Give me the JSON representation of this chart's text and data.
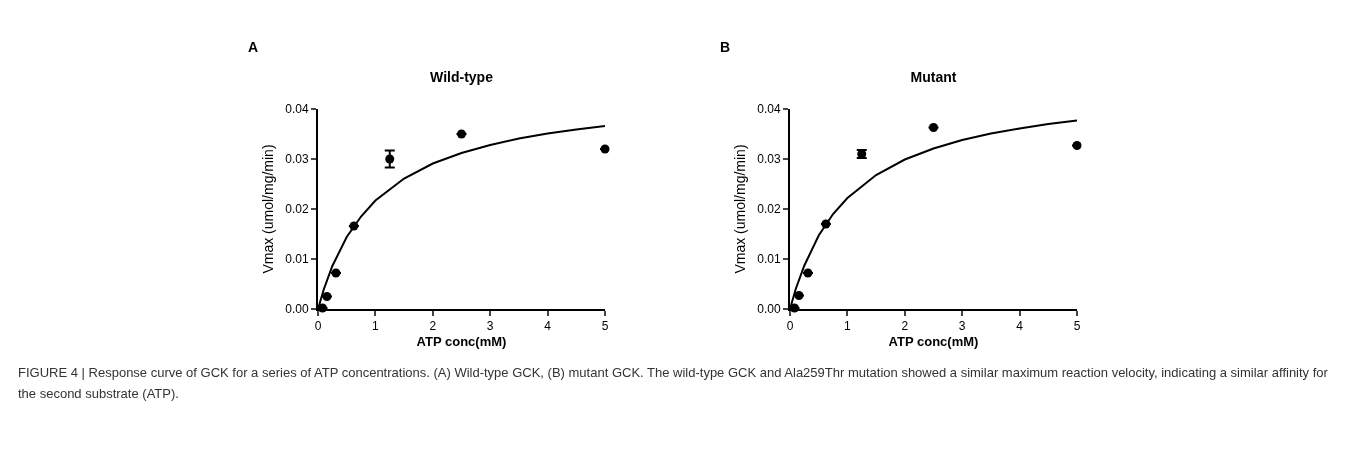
{
  "chart_data": [
    {
      "type": "scatter",
      "title": "Wild-type",
      "xlabel": "ATP conc(mM)",
      "ylabel": "Vmax (umol/mg/min)",
      "annotations": [
        "A",
        "FIGURE 4 | Response curve of GCK for a series of ATP concentrations. (A) Wild-type GCK, (B) mutant GCK. The wild-type GCK and Ala259Thr mutation showed a similar maximum reaction velocity, indicating a similar affinity for the second substrate (ATP)."
      ],
      "xlim": [
        0,
        5
      ],
      "xticks": [
        0,
        1,
        2,
        3,
        4,
        5
      ],
      "ylim": [
        0,
        0.04
      ],
      "yticks": [
        {
          "value": 0,
          "label": "0.00"
        },
        {
          "value": 0.01,
          "label": "0.01"
        },
        {
          "value": 0.02,
          "label": "0.02"
        },
        {
          "value": 0.03,
          "label": "0.03"
        },
        {
          "value": 0.04,
          "label": "0.04"
        }
      ],
      "series": [
        {
          "marker": "circle",
          "color": "#000000",
          "x": [
            0.078,
            0.156,
            0.3125,
            0.625,
            1.25,
            2.5,
            5
          ],
          "values": [
            0.0002,
            0.0025,
            0.0072,
            0.0166,
            0.03,
            0.035,
            0.032
          ],
          "errors": [
            null,
            null,
            null,
            null,
            0.0017,
            null,
            null
          ]
        },
        {
          "type": "line",
          "color": "#000000",
          "x": [
            0,
            0.1,
            0.25,
            0.5,
            0.75,
            1,
            1.5,
            2,
            2.5,
            3,
            3.5,
            4,
            4.5,
            5
          ],
          "values": [
            0,
            0.0039,
            0.0086,
            0.0144,
            0.0185,
            0.0217,
            0.0261,
            0.0291,
            0.0312,
            0.0328,
            0.0341,
            0.0351,
            0.0359,
            0.0366
          ]
        }
      ]
    },
    {
      "type": "scatter",
      "title": "Mutant",
      "xlabel": "ATP conc(mM)",
      "ylabel": "Vmax (umol/mg/min)",
      "annotations": [
        "B"
      ],
      "xlim": [
        0,
        5
      ],
      "xticks": [
        0,
        1,
        2,
        3,
        4,
        5
      ],
      "ylim": [
        0,
        0.04
      ],
      "yticks": [
        {
          "value": 0,
          "label": "0.00"
        },
        {
          "value": 0.01,
          "label": "0.01"
        },
        {
          "value": 0.02,
          "label": "0.02"
        },
        {
          "value": 0.03,
          "label": "0.03"
        },
        {
          "value": 0.04,
          "label": "0.04"
        }
      ],
      "series": [
        {
          "marker": "circle",
          "color": "#000000",
          "x": [
            0.078,
            0.156,
            0.3125,
            0.625,
            1.25,
            2.5,
            5
          ],
          "values": [
            0.0002,
            0.0027,
            0.0072,
            0.017,
            0.031,
            0.0363,
            0.0327
          ],
          "errors": [
            null,
            null,
            null,
            null,
            0.0008,
            null,
            null
          ]
        },
        {
          "type": "line",
          "color": "#000000",
          "x": [
            0,
            0.1,
            0.25,
            0.5,
            0.75,
            1,
            1.5,
            2,
            2.5,
            3,
            3.5,
            4,
            4.5,
            5
          ],
          "values": [
            0,
            0.004,
            0.0087,
            0.0147,
            0.019,
            0.0222,
            0.0268,
            0.0299,
            0.0321,
            0.0338,
            0.0351,
            0.0361,
            0.037,
            0.0377
          ]
        }
      ]
    }
  ]
}
